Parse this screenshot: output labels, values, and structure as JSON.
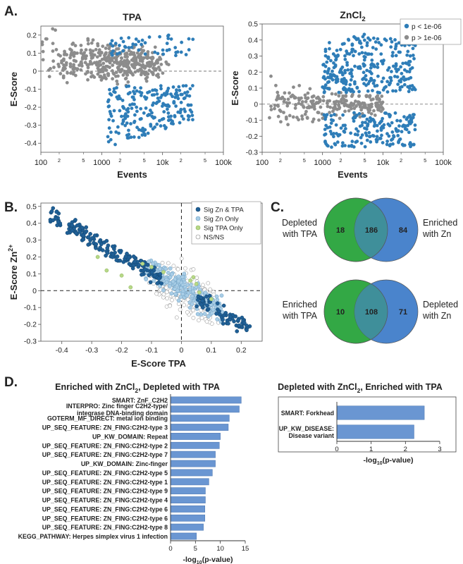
{
  "panels": {
    "A": "A.",
    "B": "B.",
    "C": "C.",
    "D": "D."
  },
  "colors": {
    "sig_blue": "#2e7db8",
    "grey": "#8c8c8c",
    "dark_blue": "#1f5f96",
    "light_blue": "#a8cde6",
    "green_dot": "#b7d887",
    "venn_green": "#33a845",
    "venn_blue": "#4a84cc",
    "venn_overlap": "#3f8f9a",
    "bar": "#6a96d2"
  },
  "chart_data": [
    {
      "id": "A1",
      "type": "scatter",
      "title": "TPA",
      "xlabel": "Events",
      "ylabel": "E-Score",
      "xscale": "log",
      "xlim": [
        100,
        100000
      ],
      "ylim": [
        -0.45,
        0.25
      ],
      "xticks_major": [
        "100",
        "1000",
        "10k",
        "100k"
      ],
      "xticks_minor": [
        "2",
        "5",
        "2",
        "5",
        "2",
        "5"
      ],
      "yticks": [
        -0.4,
        -0.3,
        -0.2,
        -0.1,
        0,
        0.1,
        0.2
      ],
      "ytick_labels": [
        "-0.4",
        "-0.3",
        "-0.2",
        "-0.1",
        "0",
        "0.1",
        "0.2"
      ],
      "reference_line": 0,
      "series": [
        {
          "name": "p < 1e-06",
          "color": "#2e7db8",
          "n": 260
        },
        {
          "name": "p > 1e-06",
          "color": "#8c8c8c",
          "n": 420
        }
      ]
    },
    {
      "id": "A2",
      "type": "scatter",
      "title": "ZnCl",
      "title_sub": "2",
      "xlabel": "Events",
      "ylabel": "E-Score",
      "xscale": "log",
      "xlim": [
        100,
        100000
      ],
      "ylim": [
        -0.3,
        0.5
      ],
      "xticks_major": [
        "100",
        "1000",
        "10k",
        "100k"
      ],
      "xticks_minor": [
        "2",
        "5",
        "2",
        "5",
        "2",
        "5"
      ],
      "yticks": [
        -0.3,
        -0.2,
        -0.1,
        0,
        0.1,
        0.2,
        0.3,
        0.4,
        0.5
      ],
      "ytick_labels": [
        "-0.3",
        "-0.2",
        "-0.1",
        "0",
        "0.1",
        "0.2",
        "0.3",
        "0.4",
        "0.5"
      ],
      "reference_line": 0,
      "legend": [
        "p < 1e-06",
        "p > 1e-06"
      ],
      "legend_position": "top-right",
      "series": [
        {
          "name": "p < 1e-06",
          "color": "#2e7db8",
          "n": 480
        },
        {
          "name": "p > 1e-06",
          "color": "#8c8c8c",
          "n": 230
        }
      ]
    },
    {
      "id": "B",
      "type": "scatter",
      "xlabel": "E-Score TPA",
      "ylabel": "E-Score Zn",
      "ylabel_sup": "2+",
      "xlim": [
        -0.47,
        0.27
      ],
      "ylim": [
        -0.3,
        0.52
      ],
      "xticks": [
        -0.4,
        -0.3,
        -0.2,
        -0.1,
        0,
        0.1,
        0.2
      ],
      "xtick_labels": [
        "-0.4",
        "-0.3",
        "-0.2",
        "-0.1",
        "0",
        "0.1",
        "0.2"
      ],
      "yticks": [
        -0.3,
        -0.2,
        -0.1,
        0,
        0.1,
        0.2,
        0.3,
        0.4,
        0.5
      ],
      "ytick_labels": [
        "-0.3",
        "-0.2",
        "-0.1",
        "0",
        "0.1",
        "0.2",
        "0.3",
        "0.4",
        "0.5"
      ],
      "reference_lines": {
        "x": 0,
        "y": 0
      },
      "legend": [
        "Sig Zn & TPA",
        "Sig Zn Only",
        "Sig TPA Only",
        "NS/NS"
      ],
      "legend_position": "top-right",
      "series": [
        {
          "name": "Sig Zn & TPA",
          "color": "#1f5f96",
          "n": 250
        },
        {
          "name": "Sig Zn Only",
          "color": "#a8cde6",
          "n": 240
        },
        {
          "name": "Sig TPA Only",
          "color": "#b7d887",
          "n": 12
        },
        {
          "name": "NS/NS",
          "color": "#ffffff",
          "n": 180
        }
      ]
    },
    {
      "id": "C1",
      "type": "venn",
      "left_label": [
        "Depleted",
        "with TPA"
      ],
      "right_label": [
        "Enriched",
        "with Zn"
      ],
      "values": {
        "left_only": "18",
        "overlap": "186",
        "right_only": "84"
      }
    },
    {
      "id": "C2",
      "type": "venn",
      "left_label": [
        "Enriched",
        "with TPA"
      ],
      "right_label": [
        "Depleted",
        "with Zn"
      ],
      "values": {
        "left_only": "10",
        "overlap": "108",
        "right_only": "71"
      }
    },
    {
      "id": "D1",
      "type": "bar",
      "orientation": "horizontal",
      "title": "Enriched with ZnCl",
      "title_sub": "2",
      "title_rest": ", Depleted with TPA",
      "xlabel": "-log",
      "xlabel_sub": "10",
      "xlabel_rest": "(p-value)",
      "xlim": [
        0,
        15
      ],
      "xticks": [
        0,
        5,
        10,
        15
      ],
      "categories": [
        "SMART: ZnF_C2H2",
        "INTERPRO: Zinc finger C2H2-type/integrase DNA-binding domain",
        "GOTERM_MF_DIRECT: metal ion binding",
        "UP_SEQ_FEATURE: ZN_FING:C2H2-type 3",
        "UP_KW_DOMAIN: Repeat",
        "UP_SEQ_FEATURE: ZN_FING:C2H2-type 2",
        "UP_SEQ_FEATURE: ZN_FING:C2H2-type 7",
        "UP_KW_DOMAIN: Zinc-finger",
        "UP_SEQ_FEATURE: ZN_FING:C2H2-type 5",
        "UP_SEQ_FEATURE: ZN_FING:C2H2-type 1",
        "UP_SEQ_FEATURE: ZN_FING:C2H2-type 9",
        "UP_SEQ_FEATURE: ZN_FING:C2H2-type 4",
        "UP_SEQ_FEATURE: ZN_FING:C2H2-type 6",
        "UP_SEQ_FEATURE: ZN_FING:C2H2-type 6",
        "UP_SEQ_FEATURE: ZN_FING:C2H2-type 8",
        "KEGG_PATHWAY: Herpes simplex virus 1 infection"
      ],
      "category_lines": [
        [
          "SMART: ZnF_C2H2"
        ],
        [
          "INTERPRO: Zinc finger C2H2-type/",
          "integrase DNA-binding domain"
        ],
        [
          "GOTERM_MF_DIRECT: metal ion binding"
        ],
        [
          "UP_SEQ_FEATURE: ZN_FING:C2H2-type 3"
        ],
        [
          "UP_KW_DOMAIN: Repeat"
        ],
        [
          "UP_SEQ_FEATURE: ZN_FING:C2H2-type 2"
        ],
        [
          "UP_SEQ_FEATURE: ZN_FING:C2H2-type 7"
        ],
        [
          "UP_KW_DOMAIN: Zinc-finger"
        ],
        [
          "UP_SEQ_FEATURE: ZN_FING:C2H2-type 5"
        ],
        [
          "UP_SEQ_FEATURE: ZN_FING:C2H2-type 1"
        ],
        [
          "UP_SEQ_FEATURE: ZN_FING:C2H2-type 9"
        ],
        [
          "UP_SEQ_FEATURE: ZN_FING:C2H2-type 4"
        ],
        [
          "UP_SEQ_FEATURE: ZN_FING:C2H2-type 6"
        ],
        [
          "UP_SEQ_FEATURE: ZN_FING:C2H2-type 6"
        ],
        [
          "UP_SEQ_FEATURE: ZN_FING:C2H2-type 8"
        ],
        [
          "KEGG_PATHWAY: Herpes simplex virus 1 infection"
        ]
      ],
      "values": [
        14.2,
        13.8,
        11.8,
        11.6,
        10.0,
        9.8,
        9.0,
        9.0,
        8.4,
        7.7,
        7.0,
        7.0,
        6.9,
        6.9,
        6.6,
        5.2
      ]
    },
    {
      "id": "D2",
      "type": "bar",
      "orientation": "horizontal",
      "title": "Depleted with ZnCl",
      "title_sub": "2",
      "title_rest": ", Enriched with TPA",
      "xlabel": "-log",
      "xlabel_sub": "10",
      "xlabel_rest": "(p-value)",
      "xlim": [
        0,
        3
      ],
      "xticks": [
        0,
        1,
        2,
        3
      ],
      "categories": [
        "SMART: Forkhead",
        "UP_KW_DISEASE: Disease variant"
      ],
      "category_lines": [
        [
          "SMART: Forkhead"
        ],
        [
          "UP_KW_DISEASE:",
          "Disease variant"
        ]
      ],
      "values": [
        2.55,
        2.25
      ]
    }
  ]
}
